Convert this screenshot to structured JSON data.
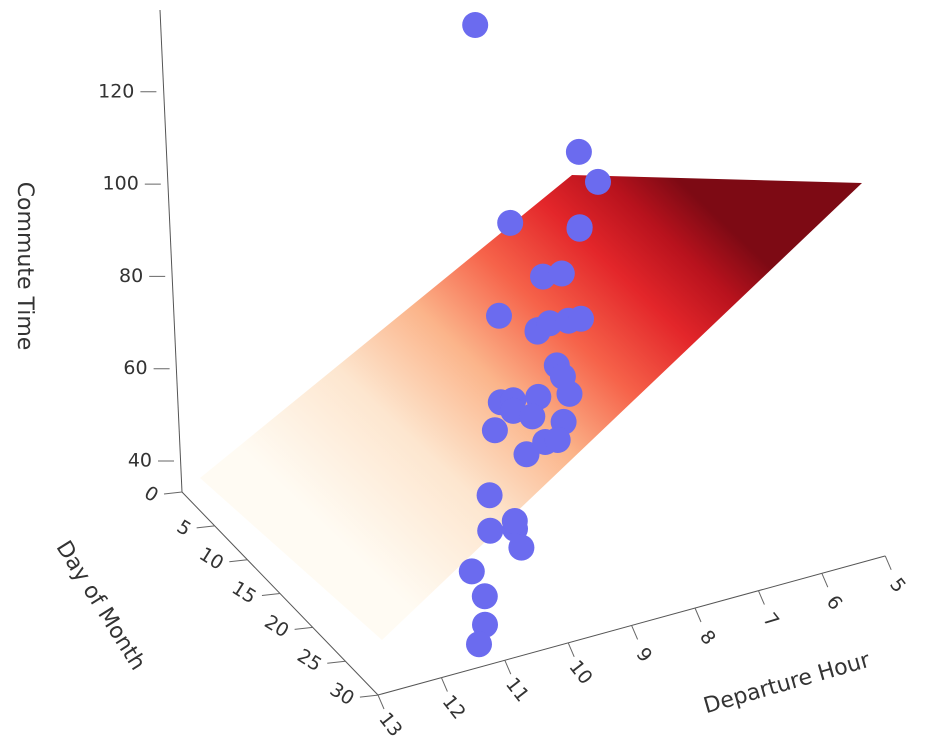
{
  "chart_data": {
    "type": "scatter",
    "subtype": "3d-scatter-with-regression-surface",
    "title": "",
    "xlabel": "Departure Hour",
    "ylabel": "Day of Month",
    "zlabel": "Commute Time",
    "x_ticks": [
      "5",
      "6",
      "7",
      "8",
      "9",
      "10",
      "11",
      "12",
      "13"
    ],
    "y_ticks": [
      "0",
      "5",
      "10",
      "15",
      "20",
      "25",
      "30"
    ],
    "z_ticks": [
      "40",
      "60",
      "80",
      "100",
      "120"
    ],
    "xlim": [
      5,
      13
    ],
    "ylim": [
      0,
      30
    ],
    "zlim": [
      40,
      120
    ],
    "surface": {
      "colorscale": [
        "#fff7ec",
        "#fdd49e",
        "#fc8d59",
        "#ef3b2c",
        "#b30000",
        "#7f0000"
      ],
      "description": "fitted plane: Commute Time rises toward early departure hours"
    },
    "points_color": "#6b6bef",
    "series": [
      {
        "name": "",
        "points": [
          {
            "x": 8.5,
            "y": 2,
            "z": 128
          },
          {
            "x": 8.8,
            "y": 10,
            "z": 98
          },
          {
            "x": 7.2,
            "y": 5,
            "z": 100
          },
          {
            "x": 6.5,
            "y": 1,
            "z": 85
          },
          {
            "x": 8.6,
            "y": 13,
            "z": 90
          },
          {
            "x": 9.2,
            "y": 18,
            "z": 88
          },
          {
            "x": 9.4,
            "y": 14,
            "z": 86
          },
          {
            "x": 9.0,
            "y": 16,
            "z": 84
          },
          {
            "x": 8.0,
            "y": 10,
            "z": 84
          },
          {
            "x": 7.0,
            "y": 3,
            "z": 80
          },
          {
            "x": 6.8,
            "y": 1,
            "z": 76
          },
          {
            "x": 10.2,
            "y": 22,
            "z": 82
          },
          {
            "x": 10.5,
            "y": 24,
            "z": 80
          },
          {
            "x": 9.8,
            "y": 20,
            "z": 78
          },
          {
            "x": 8.2,
            "y": 10,
            "z": 74
          },
          {
            "x": 9.6,
            "y": 18,
            "z": 72
          },
          {
            "x": 8.4,
            "y": 13,
            "z": 70
          },
          {
            "x": 10.8,
            "y": 26,
            "z": 70
          },
          {
            "x": 8.9,
            "y": 15,
            "z": 68
          },
          {
            "x": 11.0,
            "y": 28,
            "z": 66
          },
          {
            "x": 9.1,
            "y": 16,
            "z": 66
          },
          {
            "x": 7.5,
            "y": 6,
            "z": 66
          },
          {
            "x": 7.1,
            "y": 4,
            "z": 62
          },
          {
            "x": 9.3,
            "y": 17,
            "z": 60
          },
          {
            "x": 7.8,
            "y": 8,
            "z": 58
          },
          {
            "x": 11.5,
            "y": 30,
            "z": 62
          },
          {
            "x": 8.7,
            "y": 14,
            "z": 56
          },
          {
            "x": 11.2,
            "y": 29,
            "z": 54
          },
          {
            "x": 7.6,
            "y": 7,
            "z": 52
          },
          {
            "x": 9.9,
            "y": 21,
            "z": 52
          },
          {
            "x": 7.9,
            "y": 9,
            "z": 50
          },
          {
            "x": 9.7,
            "y": 19,
            "z": 50
          },
          {
            "x": 8.3,
            "y": 12,
            "z": 52
          },
          {
            "x": 11.1,
            "y": 28,
            "z": 46
          },
          {
            "x": 11.3,
            "y": 29,
            "z": 44
          },
          {
            "x": 9.5,
            "y": 18,
            "z": 42
          }
        ]
      }
    ],
    "grid": false,
    "legend": "none"
  }
}
